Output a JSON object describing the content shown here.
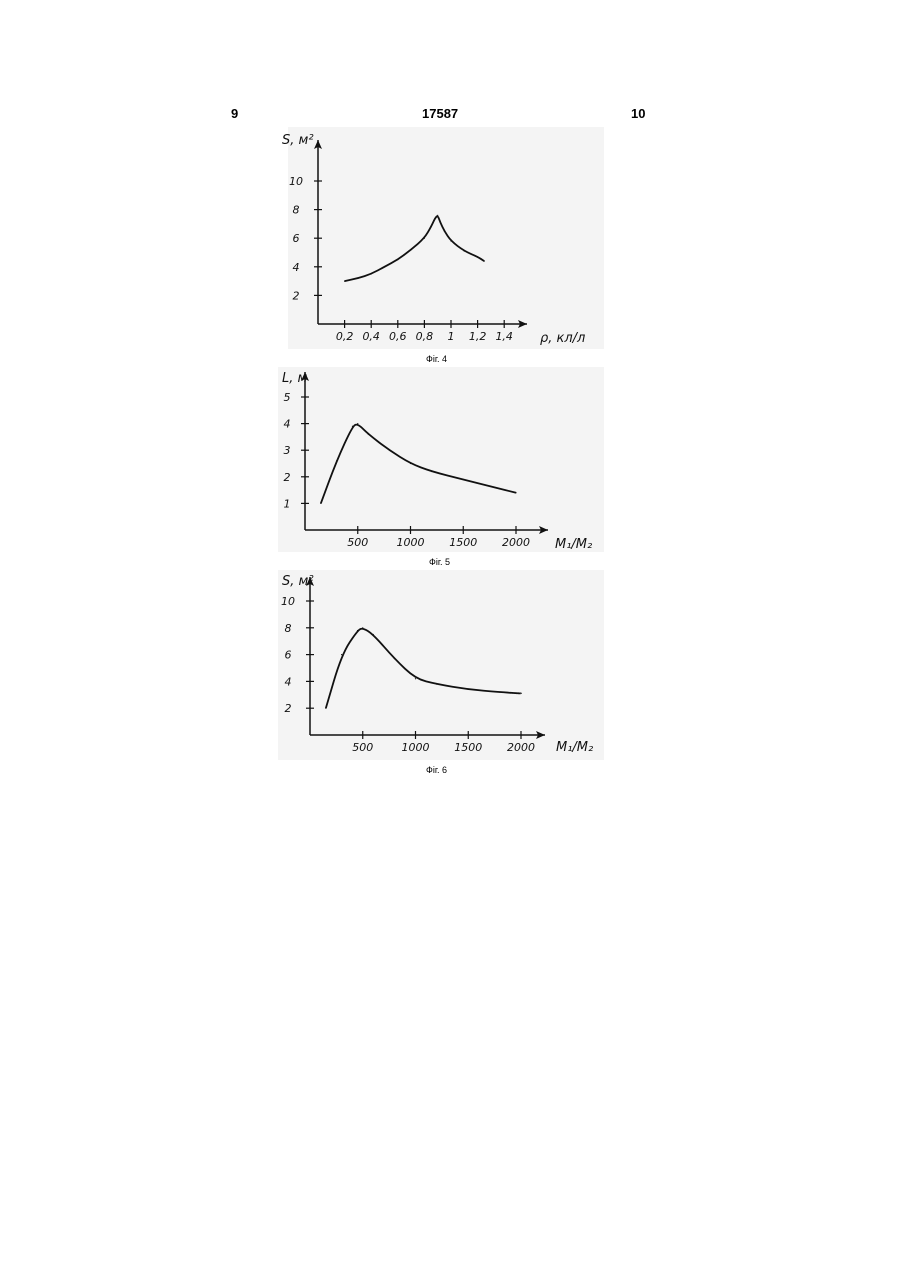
{
  "page": {
    "left_number": "9",
    "center_number": "17587",
    "right_number": "10"
  },
  "chart_data": [
    {
      "type": "line",
      "caption": "Фіг. 4",
      "xlabel": "ρ, кл/л",
      "ylabel": "S, м²",
      "x_ticks": [
        "0,2",
        "0,4",
        "0,6",
        "0,8",
        "1",
        "1,2",
        "1,4"
      ],
      "y_ticks": [
        "2",
        "4",
        "6",
        "8",
        "10"
      ],
      "xlim": [
        0.0,
        1.6
      ],
      "ylim": [
        0,
        12
      ],
      "series": [
        {
          "x": [
            0.2,
            0.3,
            0.4,
            0.5,
            0.6,
            0.7,
            0.8,
            0.85,
            0.88,
            0.9,
            0.92,
            0.95,
            1.0,
            1.1,
            1.2,
            1.25
          ],
          "y": [
            3.0,
            3.2,
            3.5,
            4.0,
            4.5,
            5.2,
            6.0,
            6.8,
            7.4,
            7.6,
            7.1,
            6.5,
            5.8,
            5.1,
            4.7,
            4.4
          ]
        }
      ]
    },
    {
      "type": "line",
      "caption": "Фіг. 5",
      "xlabel": "M₁/M₂",
      "ylabel": "L, м",
      "x_ticks": [
        "500",
        "1000",
        "1500",
        "2000"
      ],
      "y_ticks": [
        "1",
        "2",
        "3",
        "4",
        "5"
      ],
      "xlim": [
        0,
        2300
      ],
      "ylim": [
        0,
        6
      ],
      "series": [
        {
          "x": [
            150,
            300,
            450,
            500,
            600,
            800,
            1000,
            1200,
            1500,
            1800,
            2000
          ],
          "y": [
            1.0,
            2.6,
            3.9,
            4.0,
            3.6,
            3.0,
            2.5,
            2.2,
            1.9,
            1.6,
            1.4
          ]
        }
      ]
    },
    {
      "type": "line",
      "caption": "Фіг. 6",
      "xlabel": "M₁/M₂",
      "ylabel": "S, м²",
      "x_ticks": [
        "500",
        "1000",
        "1500",
        "2000"
      ],
      "y_ticks": [
        "2",
        "4",
        "6",
        "8",
        "10"
      ],
      "xlim": [
        0,
        2300
      ],
      "ylim": [
        0,
        12
      ],
      "series": [
        {
          "x": [
            150,
            300,
            450,
            500,
            600,
            800,
            1000,
            1200,
            1500,
            1800,
            2000
          ],
          "y": [
            2.0,
            6.0,
            7.8,
            8.0,
            7.5,
            5.7,
            4.2,
            3.8,
            3.4,
            3.2,
            3.1
          ]
        }
      ]
    }
  ]
}
